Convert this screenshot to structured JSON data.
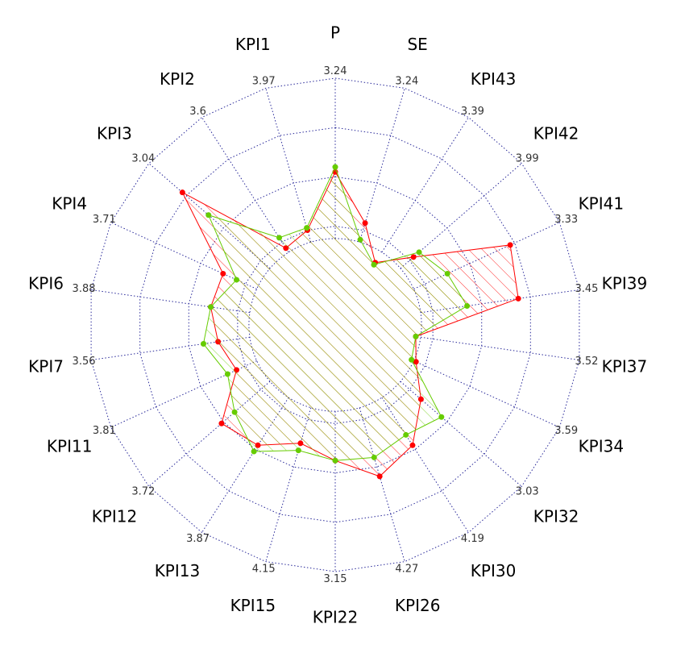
{
  "chart_data": {
    "type": "radar",
    "axes": [
      "P",
      "SE",
      "KPI43",
      "KPI42",
      "KPI41",
      "KPI39",
      "KPI37",
      "KPI34",
      "KPI32",
      "KPI30",
      "KPI26",
      "KPI22",
      "KPI15",
      "KPI13",
      "KPI12",
      "KPI11",
      "KPI7",
      "KPI6",
      "KPI4",
      "KPI3",
      "KPI2",
      "KPI1"
    ],
    "tick_labels": [
      "3.24",
      "3.24",
      "3.39",
      "3.99",
      "3.33",
      "3.45",
      "3.52",
      "3.59",
      "3.03",
      "4.19",
      "4.27",
      "3.15",
      "4.15",
      "3.87",
      "3.72",
      "3.81",
      "3.56",
      "3.88",
      "3.71",
      "3.04",
      "3.6",
      "3.97"
    ],
    "r_range": [
      0,
      1
    ],
    "rings": [
      0.4,
      0.6,
      0.8,
      1.0
    ],
    "inner_radius": 0.35,
    "colors": {
      "grid": "#2a2a9a",
      "red": "#ff0000",
      "green": "#66cc00"
    },
    "series": [
      {
        "color": "#ff0000",
        "values": [
          0.62,
          0.43,
          0.3,
          0.42,
          0.78,
          0.75,
          0.33,
          0.36,
          0.46,
          0.58,
          0.64,
          0.55,
          0.5,
          0.58,
          0.61,
          0.44,
          0.48,
          0.51,
          0.5,
          0.82,
          0.37,
          0.4
        ]
      },
      {
        "color": "#66cc00",
        "values": [
          0.64,
          0.36,
          0.29,
          0.45,
          0.5,
          0.54,
          0.33,
          0.34,
          0.57,
          0.53,
          0.56,
          0.55,
          0.53,
          0.61,
          0.54,
          0.48,
          0.54,
          0.51,
          0.44,
          0.68,
          0.42,
          0.41
        ]
      }
    ]
  }
}
